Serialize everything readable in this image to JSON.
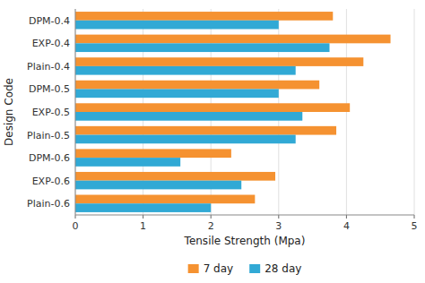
{
  "chart_data": {
    "type": "bar",
    "orientation": "horizontal",
    "categories": [
      "DPM-0.4",
      "EXP-0.4",
      "Plain-0.4",
      "DPM-0.5",
      "EXP-0.5",
      "Plain-0.5",
      "DPM-0.6",
      "EXP-0.6",
      "Plain-0.6"
    ],
    "series": [
      {
        "name": "7 day",
        "color": "#F59231",
        "values": [
          3.8,
          4.65,
          4.25,
          3.6,
          4.05,
          3.85,
          2.3,
          2.95,
          2.65
        ]
      },
      {
        "name": "28 day",
        "color": "#31A9D5",
        "values": [
          3.0,
          3.75,
          3.25,
          3.0,
          3.35,
          3.25,
          1.55,
          2.45,
          2.0
        ]
      }
    ],
    "xlabel": "Tensile Strength (Mpa)",
    "ylabel": "Design Code",
    "xlim": [
      0,
      5
    ],
    "xticks": [
      0,
      1,
      2,
      3,
      4,
      5
    ],
    "grid": true,
    "legend": "bottom"
  }
}
